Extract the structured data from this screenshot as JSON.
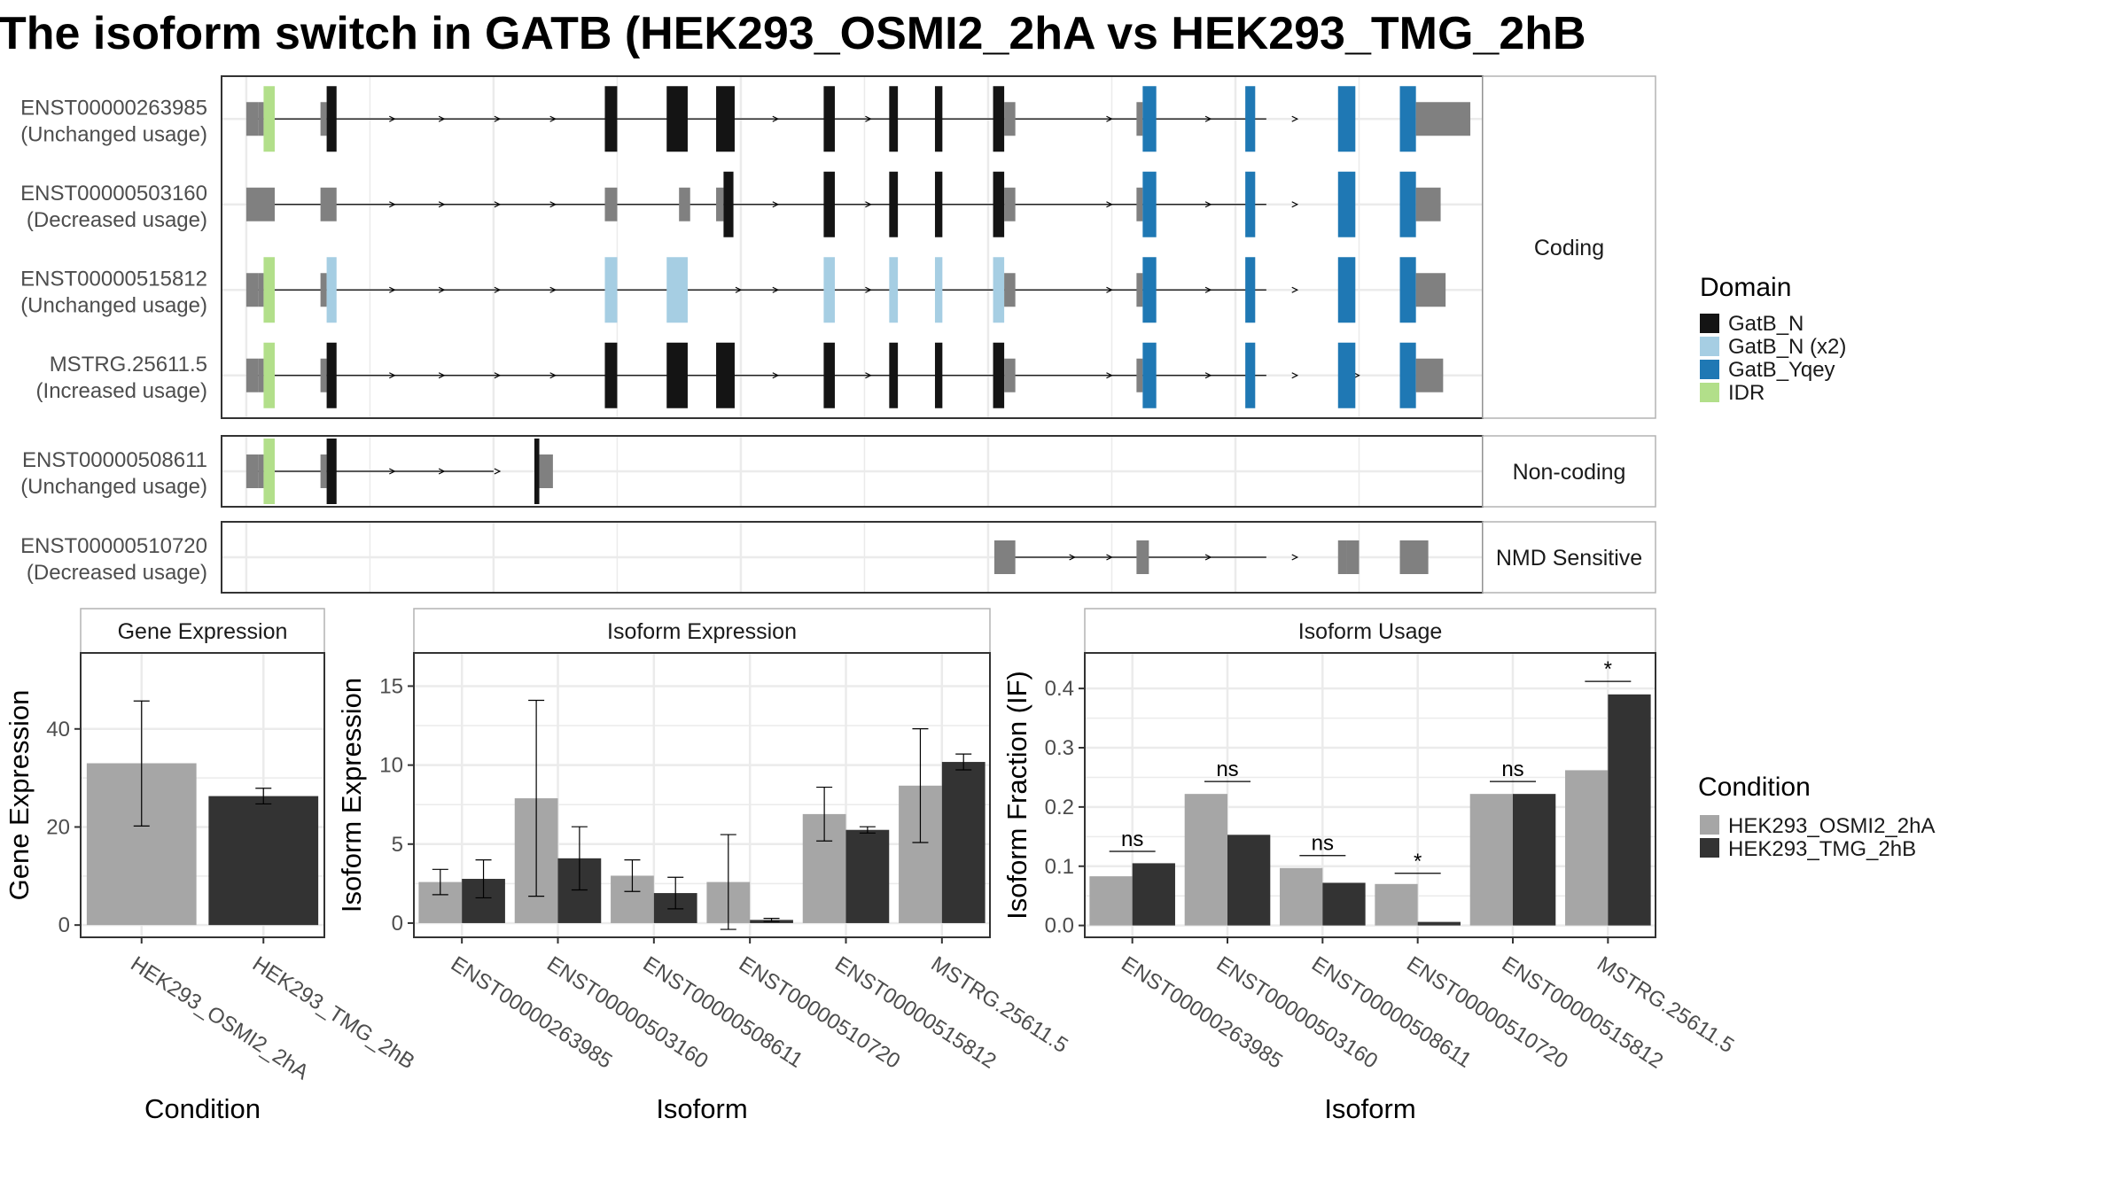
{
  "title": "The isoform switch in GATB (HEK293_OSMI2_2hA vs HEK293_TMG_2hB",
  "legends": {
    "domain": {
      "title": "Domain",
      "items": [
        {
          "label": "GatB_N",
          "color": "#141414"
        },
        {
          "label": "GatB_N (x2)",
          "color": "#a6cee3"
        },
        {
          "label": "GatB_Yqey",
          "color": "#1f78b4"
        },
        {
          "label": "IDR",
          "color": "#b2df8a"
        }
      ]
    },
    "condition": {
      "title": "Condition",
      "items": [
        {
          "label": "HEK293_OSMI2_2hA",
          "color": "#a6a6a6"
        },
        {
          "label": "HEK293_TMG_2hB",
          "color": "#333333"
        }
      ]
    }
  },
  "colors": {
    "utr": "#808080",
    "line": "#000000",
    "grid": "#ebebeb",
    "panel_border": "#333333",
    "strip_border": "#b3b3b3"
  },
  "chart_data": [
    {
      "type": "gene-structure",
      "x_range": [
        -20,
        1000
      ],
      "groups": [
        {
          "label": "Coding",
          "transcripts": [
            {
              "id": "ENST00000263985",
              "usage": "(Unchanged usage)",
              "start": 0,
              "end": 825,
              "exons": [
                [
                  0,
                  10,
                  "utr"
                ],
                [
                  10,
                  14,
                  "utr"
                ],
                [
                  14,
                  23,
                  "IDR"
                ],
                [
                  60,
                  65,
                  "utr"
                ],
                [
                  65,
                  73,
                  "GatB_N"
                ],
                [
                  290,
                  300,
                  "GatB_N"
                ],
                [
                  340,
                  357,
                  "GatB_N"
                ],
                [
                  380,
                  395,
                  "GatB_N"
                ],
                [
                  467,
                  476,
                  "GatB_N"
                ],
                [
                  520,
                  527,
                  "GatB_N"
                ],
                [
                  557,
                  563,
                  "GatB_N"
                ],
                [
                  604,
                  613,
                  "GatB_N"
                ],
                [
                  613,
                  622,
                  "utr"
                ],
                [
                  720,
                  725,
                  "utr"
                ],
                [
                  725,
                  736,
                  "GatB_Yqey"
                ],
                [
                  808,
                  816,
                  "GatB_Yqey"
                ],
                [
                  883,
                  897,
                  "GatB_Yqey"
                ],
                [
                  933,
                  946,
                  "GatB_Yqey"
                ],
                [
                  946,
                  990,
                  "utr"
                ]
              ],
              "arrows": [
                120,
                160,
                205,
                250,
                430,
                505,
                700,
                780,
                850
              ]
            },
            {
              "id": "ENST00000503160",
              "usage": "(Decreased usage)",
              "start": 0,
              "end": 825,
              "exons": [
                [
                  0,
                  23,
                  "utr"
                ],
                [
                  60,
                  73,
                  "utr"
                ],
                [
                  290,
                  300,
                  "utr"
                ],
                [
                  350,
                  359,
                  "utr"
                ],
                [
                  380,
                  386,
                  "utr"
                ],
                [
                  386,
                  394,
                  "GatB_N"
                ],
                [
                  467,
                  476,
                  "GatB_N"
                ],
                [
                  520,
                  527,
                  "GatB_N"
                ],
                [
                  557,
                  563,
                  "GatB_N"
                ],
                [
                  604,
                  613,
                  "GatB_N"
                ],
                [
                  613,
                  622,
                  "utr"
                ],
                [
                  720,
                  725,
                  "utr"
                ],
                [
                  725,
                  736,
                  "GatB_Yqey"
                ],
                [
                  808,
                  816,
                  "GatB_Yqey"
                ],
                [
                  883,
                  897,
                  "GatB_Yqey"
                ],
                [
                  933,
                  946,
                  "GatB_Yqey"
                ],
                [
                  946,
                  966,
                  "utr"
                ]
              ],
              "arrows": [
                120,
                160,
                205,
                250,
                430,
                505,
                700,
                780,
                850
              ]
            },
            {
              "id": "ENST00000515812",
              "usage": "(Unchanged usage)",
              "start": 0,
              "end": 825,
              "exons": [
                [
                  0,
                  10,
                  "utr"
                ],
                [
                  10,
                  14,
                  "utr"
                ],
                [
                  14,
                  23,
                  "IDR"
                ],
                [
                  60,
                  65,
                  "utr"
                ],
                [
                  65,
                  73,
                  "GatB_N (x2)"
                ],
                [
                  290,
                  300,
                  "GatB_N (x2)"
                ],
                [
                  340,
                  357,
                  "GatB_N (x2)"
                ],
                [
                  467,
                  476,
                  "GatB_N (x2)"
                ],
                [
                  520,
                  527,
                  "GatB_N (x2)"
                ],
                [
                  557,
                  563,
                  "GatB_N (x2)"
                ],
                [
                  604,
                  613,
                  "GatB_N (x2)"
                ],
                [
                  613,
                  622,
                  "utr"
                ],
                [
                  720,
                  725,
                  "utr"
                ],
                [
                  725,
                  736,
                  "GatB_Yqey"
                ],
                [
                  808,
                  816,
                  "GatB_Yqey"
                ],
                [
                  883,
                  897,
                  "GatB_Yqey"
                ],
                [
                  933,
                  946,
                  "GatB_Yqey"
                ],
                [
                  946,
                  970,
                  "utr"
                ]
              ],
              "arrows": [
                120,
                160,
                205,
                250,
                400,
                430,
                505,
                700,
                780,
                850
              ]
            },
            {
              "id": "MSTRG.25611.5",
              "usage": "(Increased usage)",
              "start": 0,
              "end": 825,
              "exons": [
                [
                  0,
                  10,
                  "utr"
                ],
                [
                  10,
                  14,
                  "utr"
                ],
                [
                  14,
                  23,
                  "IDR"
                ],
                [
                  60,
                  65,
                  "utr"
                ],
                [
                  65,
                  73,
                  "GatB_N"
                ],
                [
                  290,
                  300,
                  "GatB_N"
                ],
                [
                  340,
                  357,
                  "GatB_N"
                ],
                [
                  380,
                  395,
                  "GatB_N"
                ],
                [
                  467,
                  476,
                  "GatB_N"
                ],
                [
                  520,
                  527,
                  "GatB_N"
                ],
                [
                  557,
                  563,
                  "GatB_N"
                ],
                [
                  604,
                  613,
                  "GatB_N"
                ],
                [
                  613,
                  622,
                  "utr"
                ],
                [
                  720,
                  725,
                  "utr"
                ],
                [
                  725,
                  736,
                  "GatB_Yqey"
                ],
                [
                  808,
                  816,
                  "GatB_Yqey"
                ],
                [
                  883,
                  897,
                  "GatB_Yqey"
                ],
                [
                  933,
                  946,
                  "GatB_Yqey"
                ],
                [
                  946,
                  968,
                  "utr"
                ]
              ],
              "arrows": [
                120,
                160,
                205,
                250,
                430,
                505,
                700,
                780,
                850,
                900
              ]
            }
          ]
        },
        {
          "label": "Non-coding",
          "transcripts": [
            {
              "id": "ENST00000508611",
              "usage": "(Unchanged usage)",
              "start": 0,
              "end": 200,
              "exons": [
                [
                  0,
                  10,
                  "utr"
                ],
                [
                  10,
                  14,
                  "utr"
                ],
                [
                  14,
                  23,
                  "IDR"
                ],
                [
                  60,
                  65,
                  "utr"
                ],
                [
                  65,
                  73,
                  "GatB_N"
                ],
                [
                  233,
                  237,
                  "GatB_N"
                ],
                [
                  237,
                  248,
                  "utr"
                ]
              ],
              "arrows": [
                120,
                160,
                205
              ]
            }
          ]
        },
        {
          "label": "NMD Sensitive",
          "transcripts": [
            {
              "id": "ENST00000510720",
              "usage": "(Decreased usage)",
              "start": 613,
              "end": 825,
              "exons": [
                [
                  605,
                  622,
                  "utr"
                ],
                [
                  720,
                  730,
                  "utr"
                ],
                [
                  883,
                  890,
                  "utr"
                ],
                [
                  890,
                  900,
                  "utr"
                ],
                [
                  933,
                  956,
                  "utr"
                ]
              ],
              "arrows": [
                670,
                700,
                780,
                850
              ]
            }
          ]
        }
      ]
    },
    {
      "type": "bar",
      "title": "Gene Expression",
      "xlabel": "Condition",
      "ylabel": "Gene Expression",
      "categories": [
        "HEK293_OSMI2_2hA",
        "HEK293_TMG_2hB"
      ],
      "values": [
        33.0,
        26.3
      ],
      "errors": [
        [
          20.2,
          45.7
        ],
        [
          24.7,
          27.9
        ]
      ],
      "ylim": [
        -2.5,
        55.5
      ],
      "yticks": [
        0,
        20,
        40
      ],
      "grid": true
    },
    {
      "type": "bar",
      "title": "Isoform Expression",
      "xlabel": "Isoform",
      "ylabel": "Isoform Expression",
      "categories": [
        "ENST00000263985",
        "ENST00000503160",
        "ENST00000508611",
        "ENST00000510720",
        "ENST00000515812",
        "MSTRG.25611.5"
      ],
      "series": [
        {
          "name": "HEK293_OSMI2_2hA",
          "values": [
            2.6,
            7.9,
            3.0,
            2.6,
            6.9,
            8.7
          ],
          "errors": [
            [
              1.8,
              3.4
            ],
            [
              1.7,
              14.1
            ],
            [
              2.0,
              4.0
            ],
            [
              -0.4,
              5.6
            ],
            [
              5.2,
              8.6
            ],
            [
              5.1,
              12.3
            ]
          ]
        },
        {
          "name": "HEK293_TMG_2hB",
          "values": [
            2.8,
            4.1,
            1.9,
            0.2,
            5.9,
            10.2
          ],
          "errors": [
            [
              1.6,
              4.0
            ],
            [
              2.1,
              6.1
            ],
            [
              0.9,
              2.9
            ],
            [
              0.1,
              0.3
            ],
            [
              5.7,
              6.1
            ],
            [
              9.7,
              10.7
            ]
          ]
        }
      ],
      "ylim": [
        -0.9,
        17.1
      ],
      "yticks": [
        0,
        5,
        10,
        15
      ],
      "grid": true
    },
    {
      "type": "bar",
      "title": "Isoform Usage",
      "xlabel": "Isoform",
      "ylabel": "Isoform Fraction (IF)",
      "categories": [
        "ENST00000263985",
        "ENST00000503160",
        "ENST00000508611",
        "ENST00000510720",
        "ENST00000515812",
        "MSTRG.25611.5"
      ],
      "series": [
        {
          "name": "HEK293_OSMI2_2hA",
          "values": [
            0.083,
            0.222,
            0.097,
            0.07,
            0.222,
            0.262
          ]
        },
        {
          "name": "HEK293_TMG_2hB",
          "values": [
            0.105,
            0.153,
            0.072,
            0.006,
            0.222,
            0.39
          ]
        }
      ],
      "significance": [
        {
          "label": "ns",
          "y": 0.125
        },
        {
          "label": "ns",
          "y": 0.243
        },
        {
          "label": "ns",
          "y": 0.118
        },
        {
          "label": "*",
          "y": 0.088
        },
        {
          "label": "ns",
          "y": 0.243
        },
        {
          "label": "*",
          "y": 0.412
        }
      ],
      "ylim": [
        -0.02,
        0.46
      ],
      "yticks": [
        0.0,
        0.1,
        0.2,
        0.3,
        0.4
      ],
      "ytick_labels": [
        "0.0",
        "0.1",
        "0.2",
        "0.3",
        "0.4"
      ],
      "grid": true
    }
  ]
}
